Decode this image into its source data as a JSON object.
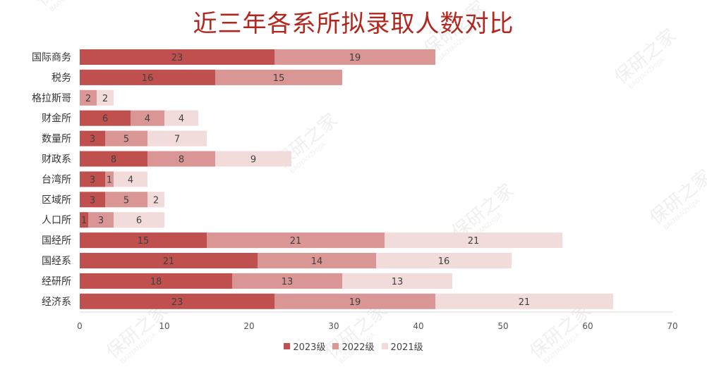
{
  "chart_data": {
    "type": "bar",
    "orientation": "horizontal",
    "stacked": true,
    "title": "近三年各系所拟录取人数对比",
    "categories": [
      "国际商务",
      "税务",
      "格拉斯哥",
      "财金所",
      "数量所",
      "财政系",
      "台湾所",
      "区域所",
      "人口所",
      "国经所",
      "国经系",
      "经研所",
      "经济系"
    ],
    "series": [
      {
        "name": "2023级",
        "color": "#c0504d",
        "values": [
          23,
          16,
          null,
          6,
          3,
          8,
          3,
          3,
          1,
          15,
          21,
          18,
          23
        ]
      },
      {
        "name": "2022级",
        "color": "#da9694",
        "values": [
          19,
          15,
          2,
          4,
          5,
          8,
          1,
          5,
          3,
          21,
          14,
          13,
          19
        ]
      },
      {
        "name": "2021级",
        "color": "#f2dcdb",
        "values": [
          null,
          null,
          2,
          4,
          7,
          9,
          4,
          2,
          6,
          21,
          16,
          13,
          21
        ]
      }
    ],
    "xlim": [
      0,
      70
    ],
    "xticks": [
      0,
      10,
      20,
      30,
      40,
      50,
      60,
      70
    ],
    "legend_position": "bottom",
    "grid": false
  },
  "watermark": {
    "text": "保研之家",
    "subtext": "BAOYANZHIJIA"
  }
}
